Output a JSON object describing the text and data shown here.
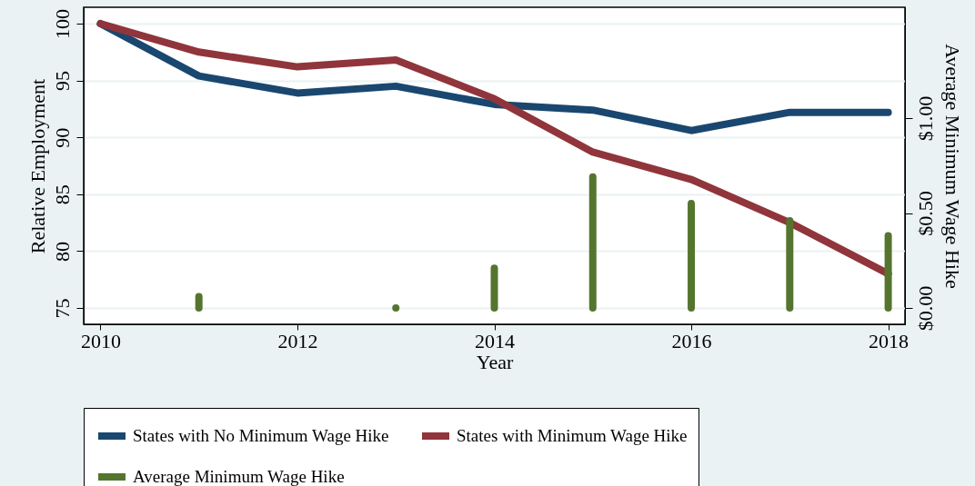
{
  "chart_data": {
    "type": "line",
    "xlabel": "Year",
    "ylabel": "Relative Employment",
    "y2label": "Average Minimum Wage Hike",
    "x": [
      2010,
      2011,
      2012,
      2013,
      2014,
      2015,
      2016,
      2017,
      2018
    ],
    "series": [
      {
        "name": "States with No Minimum Wage Hike",
        "color": "#1a476f",
        "values": [
          100,
          95.4,
          93.9,
          94.5,
          92.9,
          92.4,
          90.6,
          92.2,
          92.2
        ]
      },
      {
        "name": "States with Minimum Wage Hike",
        "color": "#90353b",
        "values": [
          100,
          97.5,
          96.2,
          96.8,
          93.4,
          88.7,
          86.3,
          82.5,
          78.0
        ]
      },
      {
        "name": "Average Minimum Wage Hike",
        "color": "#55752f",
        "type": "bar",
        "axis": "y2",
        "values": [
          null,
          0.06,
          null,
          0,
          0.21,
          0.69,
          0.55,
          0.46,
          0.38
        ]
      }
    ],
    "xlim": [
      2009.83,
      2018.17
    ],
    "xticks": [
      2010,
      2012,
      2014,
      2016,
      2018
    ],
    "ylim": [
      73.56,
      101.44
    ],
    "yticks": [
      75,
      80,
      85,
      90,
      95,
      100
    ],
    "y2lim": [
      -0.086,
      1.584
    ],
    "y2ticks": [
      {
        "value": 0,
        "label": "$0.00"
      },
      {
        "value": 0.5,
        "label": "$0.50"
      },
      {
        "value": 1,
        "label": "$1.00"
      }
    ],
    "grid": "y",
    "legend": "bottom"
  }
}
